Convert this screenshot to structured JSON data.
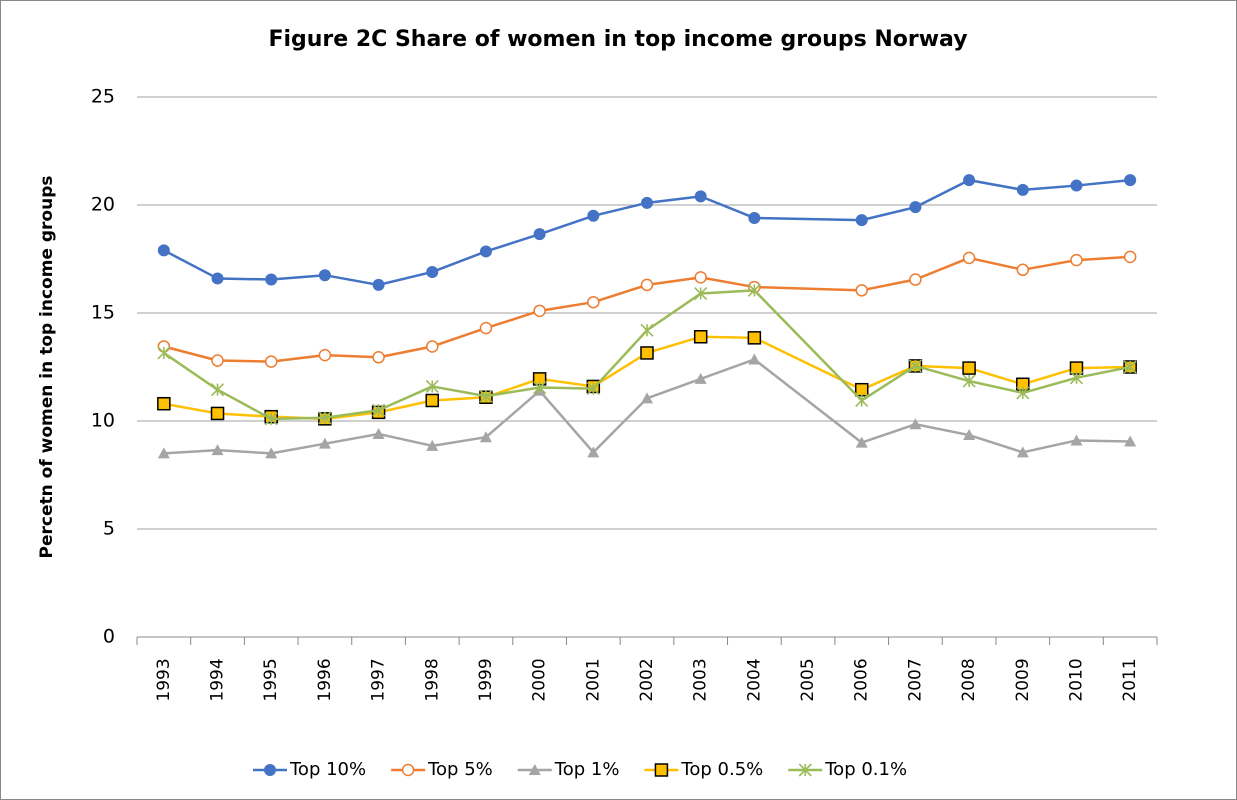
{
  "chart_data": {
    "type": "line",
    "title": "Figure 2C Share of women in top income groups Norway",
    "y_label": "Percetn of women in top income groups",
    "categories": [
      "1993",
      "1994",
      "1995",
      "1996",
      "1997",
      "1998",
      "1999",
      "2000",
      "2001",
      "2002",
      "2003",
      "2004",
      "2005",
      "2006",
      "2007",
      "2008",
      "2009",
      "2010",
      "2011"
    ],
    "ylim": [
      0,
      25
    ],
    "yticks": [
      0,
      5,
      10,
      15,
      20,
      25
    ],
    "grid": true,
    "legend": "bottom",
    "series": [
      {
        "name": "Top 10%",
        "color": "#4472c4",
        "marker": "circle",
        "values": [
          17.9,
          16.6,
          16.55,
          16.75,
          16.3,
          16.9,
          17.85,
          18.65,
          19.5,
          20.1,
          20.4,
          19.4,
          null,
          19.3,
          19.9,
          21.15,
          20.7,
          20.9,
          21.15
        ]
      },
      {
        "name": "Top 5%",
        "color": "#ed7d31",
        "marker": "open-circle",
        "values": [
          13.45,
          12.8,
          12.75,
          13.05,
          12.95,
          13.45,
          14.3,
          15.1,
          15.5,
          16.3,
          16.65,
          16.2,
          null,
          16.05,
          16.55,
          17.55,
          17.0,
          17.45,
          17.6
        ]
      },
      {
        "name": "Top 1%",
        "color": "#a5a5a5",
        "marker": "triangle",
        "values": [
          8.5,
          8.65,
          8.5,
          8.95,
          9.4,
          8.85,
          9.25,
          11.4,
          8.55,
          11.05,
          11.95,
          12.85,
          null,
          9.0,
          9.85,
          9.35,
          8.55,
          9.1,
          9.05
        ]
      },
      {
        "name": "Top 0.5%",
        "color": "#ffc000",
        "marker": "square",
        "values": [
          10.8,
          10.35,
          10.2,
          10.1,
          10.4,
          10.95,
          11.1,
          11.95,
          11.6,
          13.15,
          13.9,
          13.85,
          null,
          11.45,
          12.55,
          12.45,
          11.7,
          12.45,
          12.5
        ]
      },
      {
        "name": "Top 0.1%",
        "color": "#9bbb59",
        "marker": "star",
        "values": [
          13.15,
          11.45,
          10.1,
          10.15,
          10.5,
          11.6,
          11.15,
          11.55,
          11.5,
          14.2,
          15.9,
          16.05,
          null,
          10.95,
          12.55,
          11.85,
          11.3,
          12.0,
          12.5
        ]
      }
    ]
  }
}
